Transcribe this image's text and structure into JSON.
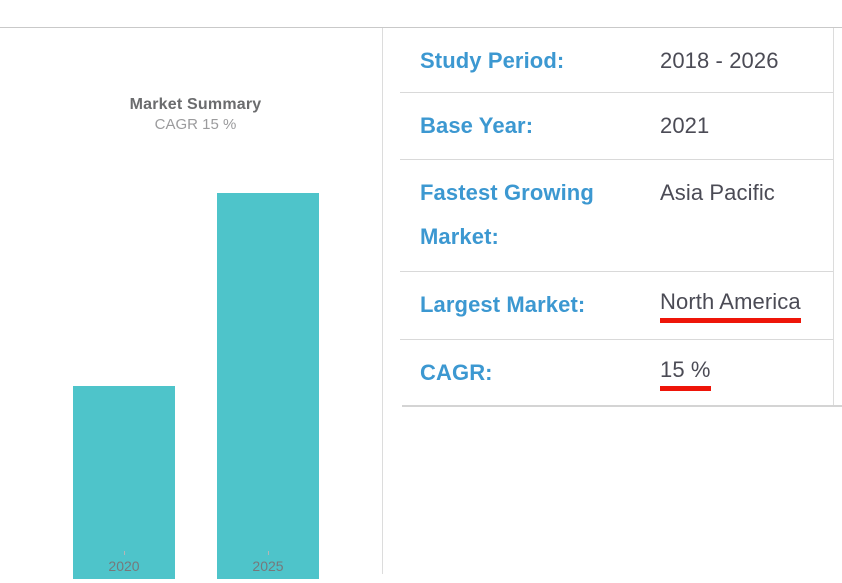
{
  "theme": {
    "label_blue": "#3c98d1",
    "value_dark": "#4b4b55",
    "bar_teal": "#4ec4ca",
    "underline_red": "#ee1509",
    "divider_gray": "#d9d9d9",
    "title_gray": "#6b6c6e",
    "subtitle_gray": "#9b9b9d",
    "axis_gray": "#77787b"
  },
  "chart_data": {
    "type": "bar",
    "title": "Market Summary",
    "subtitle": "CAGR 15 %",
    "categories": [
      "2020",
      "2025"
    ],
    "values": [
      1,
      2
    ],
    "values_estimated": true,
    "xlabel": "",
    "ylabel": "",
    "ylim": [
      0,
      2.2
    ],
    "grid": false,
    "legend": false,
    "bar_color": "#4ec4ca"
  },
  "table": {
    "rows": [
      {
        "label": "Study Period:",
        "value": "2018 - 2026",
        "underlined": false
      },
      {
        "label": "Base Year:",
        "value": "2021",
        "underlined": false
      },
      {
        "label": "Fastest Growing Market:",
        "value": "Asia Pacific",
        "underlined": false
      },
      {
        "label": "Largest Market:",
        "value": "North America",
        "underlined": true
      },
      {
        "label": "CAGR:",
        "value": "15 %",
        "underlined": true
      }
    ]
  }
}
